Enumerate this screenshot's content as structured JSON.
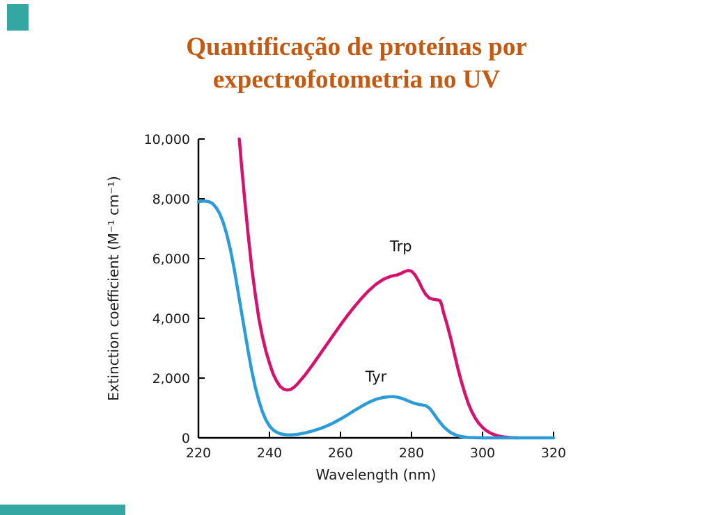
{
  "slide": {
    "title_line1": "Quantificação de proteínas por",
    "title_line2": "expectrofotometria no UV",
    "title_color": "#c25a11",
    "accent_color": "#35a7a3"
  },
  "chart_data": {
    "type": "line",
    "title": "",
    "xlabel": "Wavelength (nm)",
    "ylabel": "Extinction coefficient (M⁻¹ cm⁻¹)",
    "xlim": [
      220,
      320
    ],
    "ylim": [
      0,
      10000
    ],
    "grid": false,
    "legend_position": "inline-labels",
    "x_ticks": [
      220,
      240,
      260,
      280,
      300,
      320
    ],
    "x_tick_labels": [
      "220",
      "240",
      "260",
      "280",
      "300",
      "320"
    ],
    "y_ticks": [
      0,
      2000,
      4000,
      6000,
      8000,
      10000
    ],
    "y_tick_labels": [
      "0",
      "2,000",
      "4,000",
      "6,000",
      "8,000",
      "10,000"
    ],
    "series": [
      {
        "name": "Trp",
        "color": "#d4136e",
        "label_x": 277,
        "label_y": 6250,
        "points": [
          [
            231.5,
            10000
          ],
          [
            232,
            9300
          ],
          [
            233,
            8000
          ],
          [
            234,
            6800
          ],
          [
            235,
            5700
          ],
          [
            236,
            4800
          ],
          [
            237,
            4000
          ],
          [
            238,
            3400
          ],
          [
            239,
            2900
          ],
          [
            240,
            2500
          ],
          [
            241,
            2150
          ],
          [
            242,
            1900
          ],
          [
            243,
            1720
          ],
          [
            244,
            1630
          ],
          [
            245,
            1600
          ],
          [
            246,
            1620
          ],
          [
            247,
            1700
          ],
          [
            248,
            1820
          ],
          [
            250,
            2100
          ],
          [
            252,
            2420
          ],
          [
            254,
            2760
          ],
          [
            256,
            3100
          ],
          [
            258,
            3440
          ],
          [
            260,
            3780
          ],
          [
            262,
            4100
          ],
          [
            264,
            4400
          ],
          [
            266,
            4680
          ],
          [
            268,
            4930
          ],
          [
            270,
            5140
          ],
          [
            272,
            5300
          ],
          [
            274,
            5400
          ],
          [
            275,
            5430
          ],
          [
            276,
            5450
          ],
          [
            277,
            5500
          ],
          [
            278,
            5560
          ],
          [
            279,
            5600
          ],
          [
            280,
            5580
          ],
          [
            281,
            5450
          ],
          [
            282,
            5250
          ],
          [
            283,
            5000
          ],
          [
            284,
            4800
          ],
          [
            285,
            4680
          ],
          [
            286,
            4640
          ],
          [
            287,
            4620
          ],
          [
            288,
            4600
          ],
          [
            288.5,
            4450
          ],
          [
            289,
            4200
          ],
          [
            290,
            3800
          ],
          [
            291,
            3350
          ],
          [
            292,
            2850
          ],
          [
            293,
            2350
          ],
          [
            294,
            1900
          ],
          [
            295,
            1500
          ],
          [
            296,
            1150
          ],
          [
            297,
            870
          ],
          [
            298,
            650
          ],
          [
            299,
            480
          ],
          [
            300,
            350
          ],
          [
            301,
            250
          ],
          [
            302,
            175
          ],
          [
            303,
            120
          ],
          [
            304,
            80
          ],
          [
            305,
            50
          ],
          [
            306,
            30
          ],
          [
            308,
            10
          ],
          [
            310,
            0
          ]
        ]
      },
      {
        "name": "Tyr",
        "color": "#2b9cd8",
        "label_x": 270,
        "label_y": 1880,
        "points": [
          [
            220,
            7900
          ],
          [
            221,
            7920
          ],
          [
            222,
            7920
          ],
          [
            223,
            7900
          ],
          [
            224,
            7840
          ],
          [
            225,
            7700
          ],
          [
            226,
            7500
          ],
          [
            227,
            7200
          ],
          [
            228,
            6800
          ],
          [
            229,
            6300
          ],
          [
            230,
            5700
          ],
          [
            231,
            5000
          ],
          [
            232,
            4300
          ],
          [
            233,
            3600
          ],
          [
            234,
            2900
          ],
          [
            235,
            2250
          ],
          [
            236,
            1700
          ],
          [
            237,
            1250
          ],
          [
            238,
            880
          ],
          [
            239,
            600
          ],
          [
            240,
            400
          ],
          [
            241,
            270
          ],
          [
            242,
            190
          ],
          [
            243,
            140
          ],
          [
            244,
            115
          ],
          [
            245,
            100
          ],
          [
            246,
            100
          ],
          [
            247,
            105
          ],
          [
            248,
            120
          ],
          [
            250,
            165
          ],
          [
            252,
            225
          ],
          [
            254,
            300
          ],
          [
            256,
            390
          ],
          [
            258,
            500
          ],
          [
            260,
            630
          ],
          [
            262,
            770
          ],
          [
            264,
            920
          ],
          [
            266,
            1060
          ],
          [
            268,
            1190
          ],
          [
            270,
            1290
          ],
          [
            272,
            1350
          ],
          [
            274,
            1380
          ],
          [
            275,
            1380
          ],
          [
            276,
            1360
          ],
          [
            277,
            1330
          ],
          [
            278,
            1290
          ],
          [
            279,
            1240
          ],
          [
            280,
            1190
          ],
          [
            281,
            1150
          ],
          [
            282,
            1120
          ],
          [
            283,
            1100
          ],
          [
            284,
            1080
          ],
          [
            285,
            1000
          ],
          [
            286,
            850
          ],
          [
            287,
            680
          ],
          [
            288,
            520
          ],
          [
            289,
            380
          ],
          [
            290,
            270
          ],
          [
            291,
            180
          ],
          [
            292,
            120
          ],
          [
            293,
            75
          ],
          [
            294,
            45
          ],
          [
            295,
            25
          ],
          [
            296,
            12
          ],
          [
            298,
            4
          ],
          [
            300,
            1
          ],
          [
            302,
            0
          ],
          [
            320,
            0
          ]
        ]
      }
    ]
  }
}
